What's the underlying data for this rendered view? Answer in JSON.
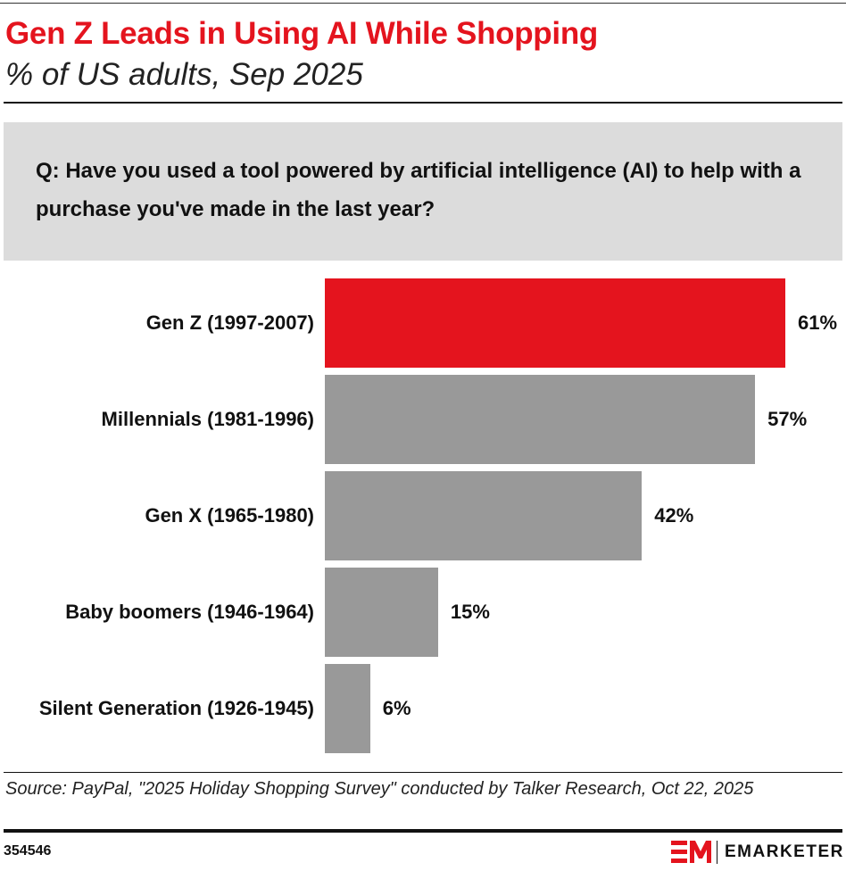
{
  "chart_data": {
    "type": "bar",
    "orientation": "horizontal",
    "title": "Gen Z Leads in Using AI While Shopping",
    "subtitle": "% of US adults, Sep 2025",
    "question": "Q: Have you used a tool powered by artificial intelligence (AI) to help with a purchase you've made in the last year?",
    "categories": [
      "Gen Z (1997-2007)",
      "Millennials (1981-1996)",
      "Gen X (1965-1980)",
      "Baby boomers (1946-1964)",
      "Silent Generation (1926-1945)"
    ],
    "values": [
      61,
      57,
      42,
      15,
      6
    ],
    "value_labels": [
      "61%",
      "57%",
      "42%",
      "15%",
      "6%"
    ],
    "colors": [
      "#e4141e",
      "#999999",
      "#999999",
      "#999999",
      "#999999"
    ],
    "source": "Source: PayPal, \"2025 Holiday Shopping Survey\" conducted by Talker Research, Oct 22, 2025",
    "chart_id": "354546",
    "brand": "EMARKETER"
  }
}
